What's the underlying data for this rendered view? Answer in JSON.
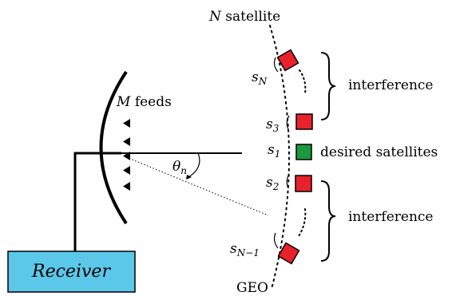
{
  "title_prefix": "N",
  "title_suffix": " satellite",
  "feeds_prefix": "M",
  "feeds_suffix": " feeds",
  "angle_symbol": "θ",
  "angle_subscript": "n",
  "receiver_label": "Receiver",
  "geo_label": "GEO",
  "interference_top": "interference",
  "desired_label": "desired satellites",
  "interference_bottom": "interference",
  "sat_symbol": "s",
  "sat_labels": {
    "sN": "N",
    "s3": "3",
    "s1": "1",
    "s2": "2",
    "sNm1": "N−1"
  },
  "colors": {
    "interfering_satellite": "#e8222a",
    "desired_satellite": "#1a9a3c",
    "receiver_box": "#5bc8ea"
  }
}
